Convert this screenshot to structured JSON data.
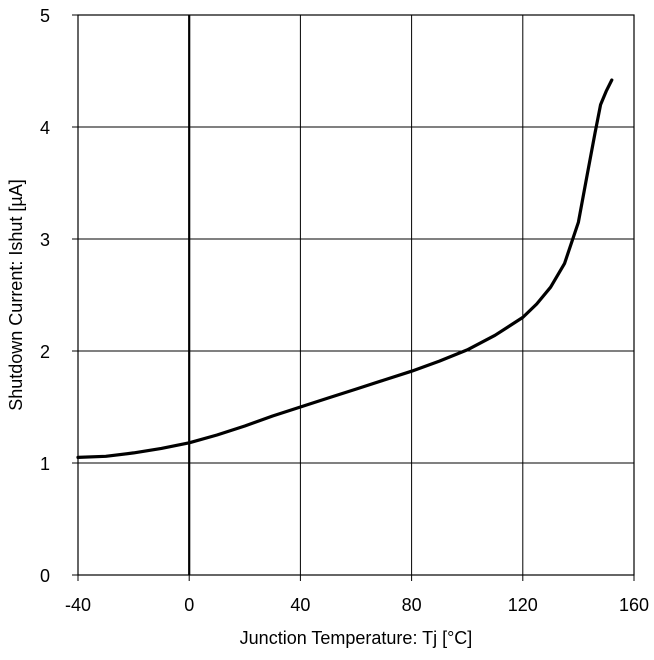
{
  "chart_data": {
    "type": "line",
    "title": "",
    "xlabel": "Junction Temperature: Tj [°C]",
    "ylabel": "Shutdown Current: Ishut [µA]",
    "xlim": [
      -40,
      160
    ],
    "ylim": [
      0,
      5
    ],
    "xticks": [
      "-40",
      "0",
      "40",
      "80",
      "120",
      "160"
    ],
    "yticks": [
      "0",
      "1",
      "2",
      "3",
      "4",
      "5"
    ],
    "grid": true,
    "legend": "none",
    "line_color": "#000000",
    "series": [
      {
        "x": [
          -40,
          -30,
          -20,
          -10,
          0,
          10,
          20,
          30,
          40,
          50,
          60,
          70,
          80,
          90,
          100,
          110,
          120,
          125,
          130,
          135,
          140,
          143,
          146,
          148,
          150,
          152
        ],
        "y": [
          1.05,
          1.06,
          1.09,
          1.13,
          1.18,
          1.25,
          1.33,
          1.42,
          1.5,
          1.58,
          1.66,
          1.74,
          1.82,
          1.91,
          2.01,
          2.14,
          2.3,
          2.42,
          2.57,
          2.78,
          3.15,
          3.55,
          3.95,
          4.2,
          4.32,
          4.42
        ]
      }
    ]
  }
}
